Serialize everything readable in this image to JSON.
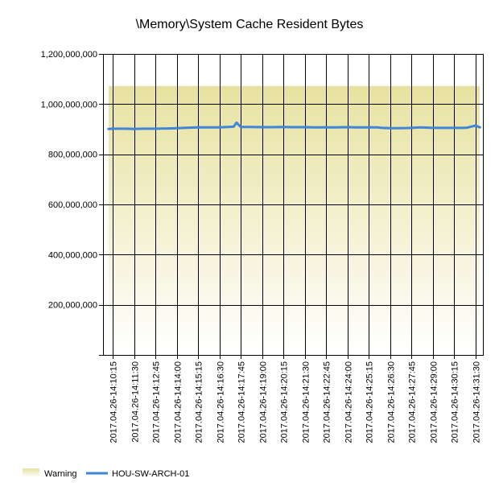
{
  "chart_data": {
    "type": "line",
    "title": "\\Memory\\System Cache Resident Bytes",
    "xlabel": "",
    "ylabel": "",
    "ylim": [
      0,
      1200000000
    ],
    "yticks": [
      200000000,
      400000000,
      600000000,
      800000000,
      1000000000,
      1200000000
    ],
    "ytick_labels": [
      "200,000,000",
      "400,000,000",
      "600,000,000",
      "800,000,000",
      "1,000,000,000",
      "1,200,000,000"
    ],
    "x_start": "2017.04.26-14:10:15",
    "x_end": "2017.04.26-14:31:30",
    "xtick_labels": [
      "2017.04.26-14:10:15",
      "2017.04.26-14:11:30",
      "2017.04.26-14:12:45",
      "2017.04.26-14:14:00",
      "2017.04.26-14:15:15",
      "2017.04.26-14:16:30",
      "2017.04.26-14:17:45",
      "2017.04.26-14:19:00",
      "2017.04.26-14:20:15",
      "2017.04.26-14:21:30",
      "2017.04.26-14:22:45",
      "2017.04.26-14:24:00",
      "2017.04.26-14:25:15",
      "2017.04.26-14:26:30",
      "2017.04.26-14:27:45",
      "2017.04.26-14:29:00",
      "2017.04.26-14:30:15",
      "2017.04.26-14:31:30"
    ],
    "grid": true,
    "legend_position": "bottom-left",
    "warning_band": {
      "name": "Warning",
      "ymin": 0,
      "ymax": 1072000000,
      "color": "#e8e2a0"
    },
    "series": [
      {
        "name": "HOU-SW-ARCH-01",
        "color": "#3f86d8",
        "x": [
          "2017.04.26-14:10:00",
          "2017.04.26-14:10:15",
          "2017.04.26-14:11:00",
          "2017.04.26-14:11:30",
          "2017.04.26-14:12:00",
          "2017.04.26-14:12:45",
          "2017.04.26-14:13:30",
          "2017.04.26-14:14:00",
          "2017.04.26-14:14:45",
          "2017.04.26-14:15:15",
          "2017.04.26-14:15:45",
          "2017.04.26-14:16:30",
          "2017.04.26-14:17:00",
          "2017.04.26-14:17:20",
          "2017.04.26-14:17:30",
          "2017.04.26-14:17:45",
          "2017.04.26-14:18:15",
          "2017.04.26-14:19:00",
          "2017.04.26-14:19:30",
          "2017.04.26-14:20:15",
          "2017.04.26-14:20:45",
          "2017.04.26-14:21:30",
          "2017.04.26-14:22:00",
          "2017.04.26-14:22:45",
          "2017.04.26-14:23:15",
          "2017.04.26-14:24:00",
          "2017.04.26-14:24:30",
          "2017.04.26-14:25:15",
          "2017.04.26-14:25:45",
          "2017.04.26-14:26:00",
          "2017.04.26-14:26:30",
          "2017.04.26-14:27:00",
          "2017.04.26-14:27:45",
          "2017.04.26-14:28:15",
          "2017.04.26-14:29:00",
          "2017.04.26-14:29:30",
          "2017.04.26-14:30:15",
          "2017.04.26-14:30:45",
          "2017.04.26-14:31:00",
          "2017.04.26-14:31:30",
          "2017.04.26-14:31:45"
        ],
        "y": [
          901000000,
          902000000,
          902000000,
          901000000,
          902000000,
          902000000,
          903000000,
          904000000,
          906000000,
          907000000,
          907000000,
          907000000,
          909000000,
          910000000,
          926000000,
          909000000,
          909000000,
          908000000,
          908000000,
          909000000,
          908000000,
          908000000,
          907000000,
          907000000,
          907000000,
          908000000,
          907000000,
          907000000,
          907000000,
          905000000,
          904000000,
          904000000,
          905000000,
          907000000,
          905000000,
          905000000,
          905000000,
          905000000,
          906000000,
          914000000,
          907000000
        ]
      }
    ]
  }
}
